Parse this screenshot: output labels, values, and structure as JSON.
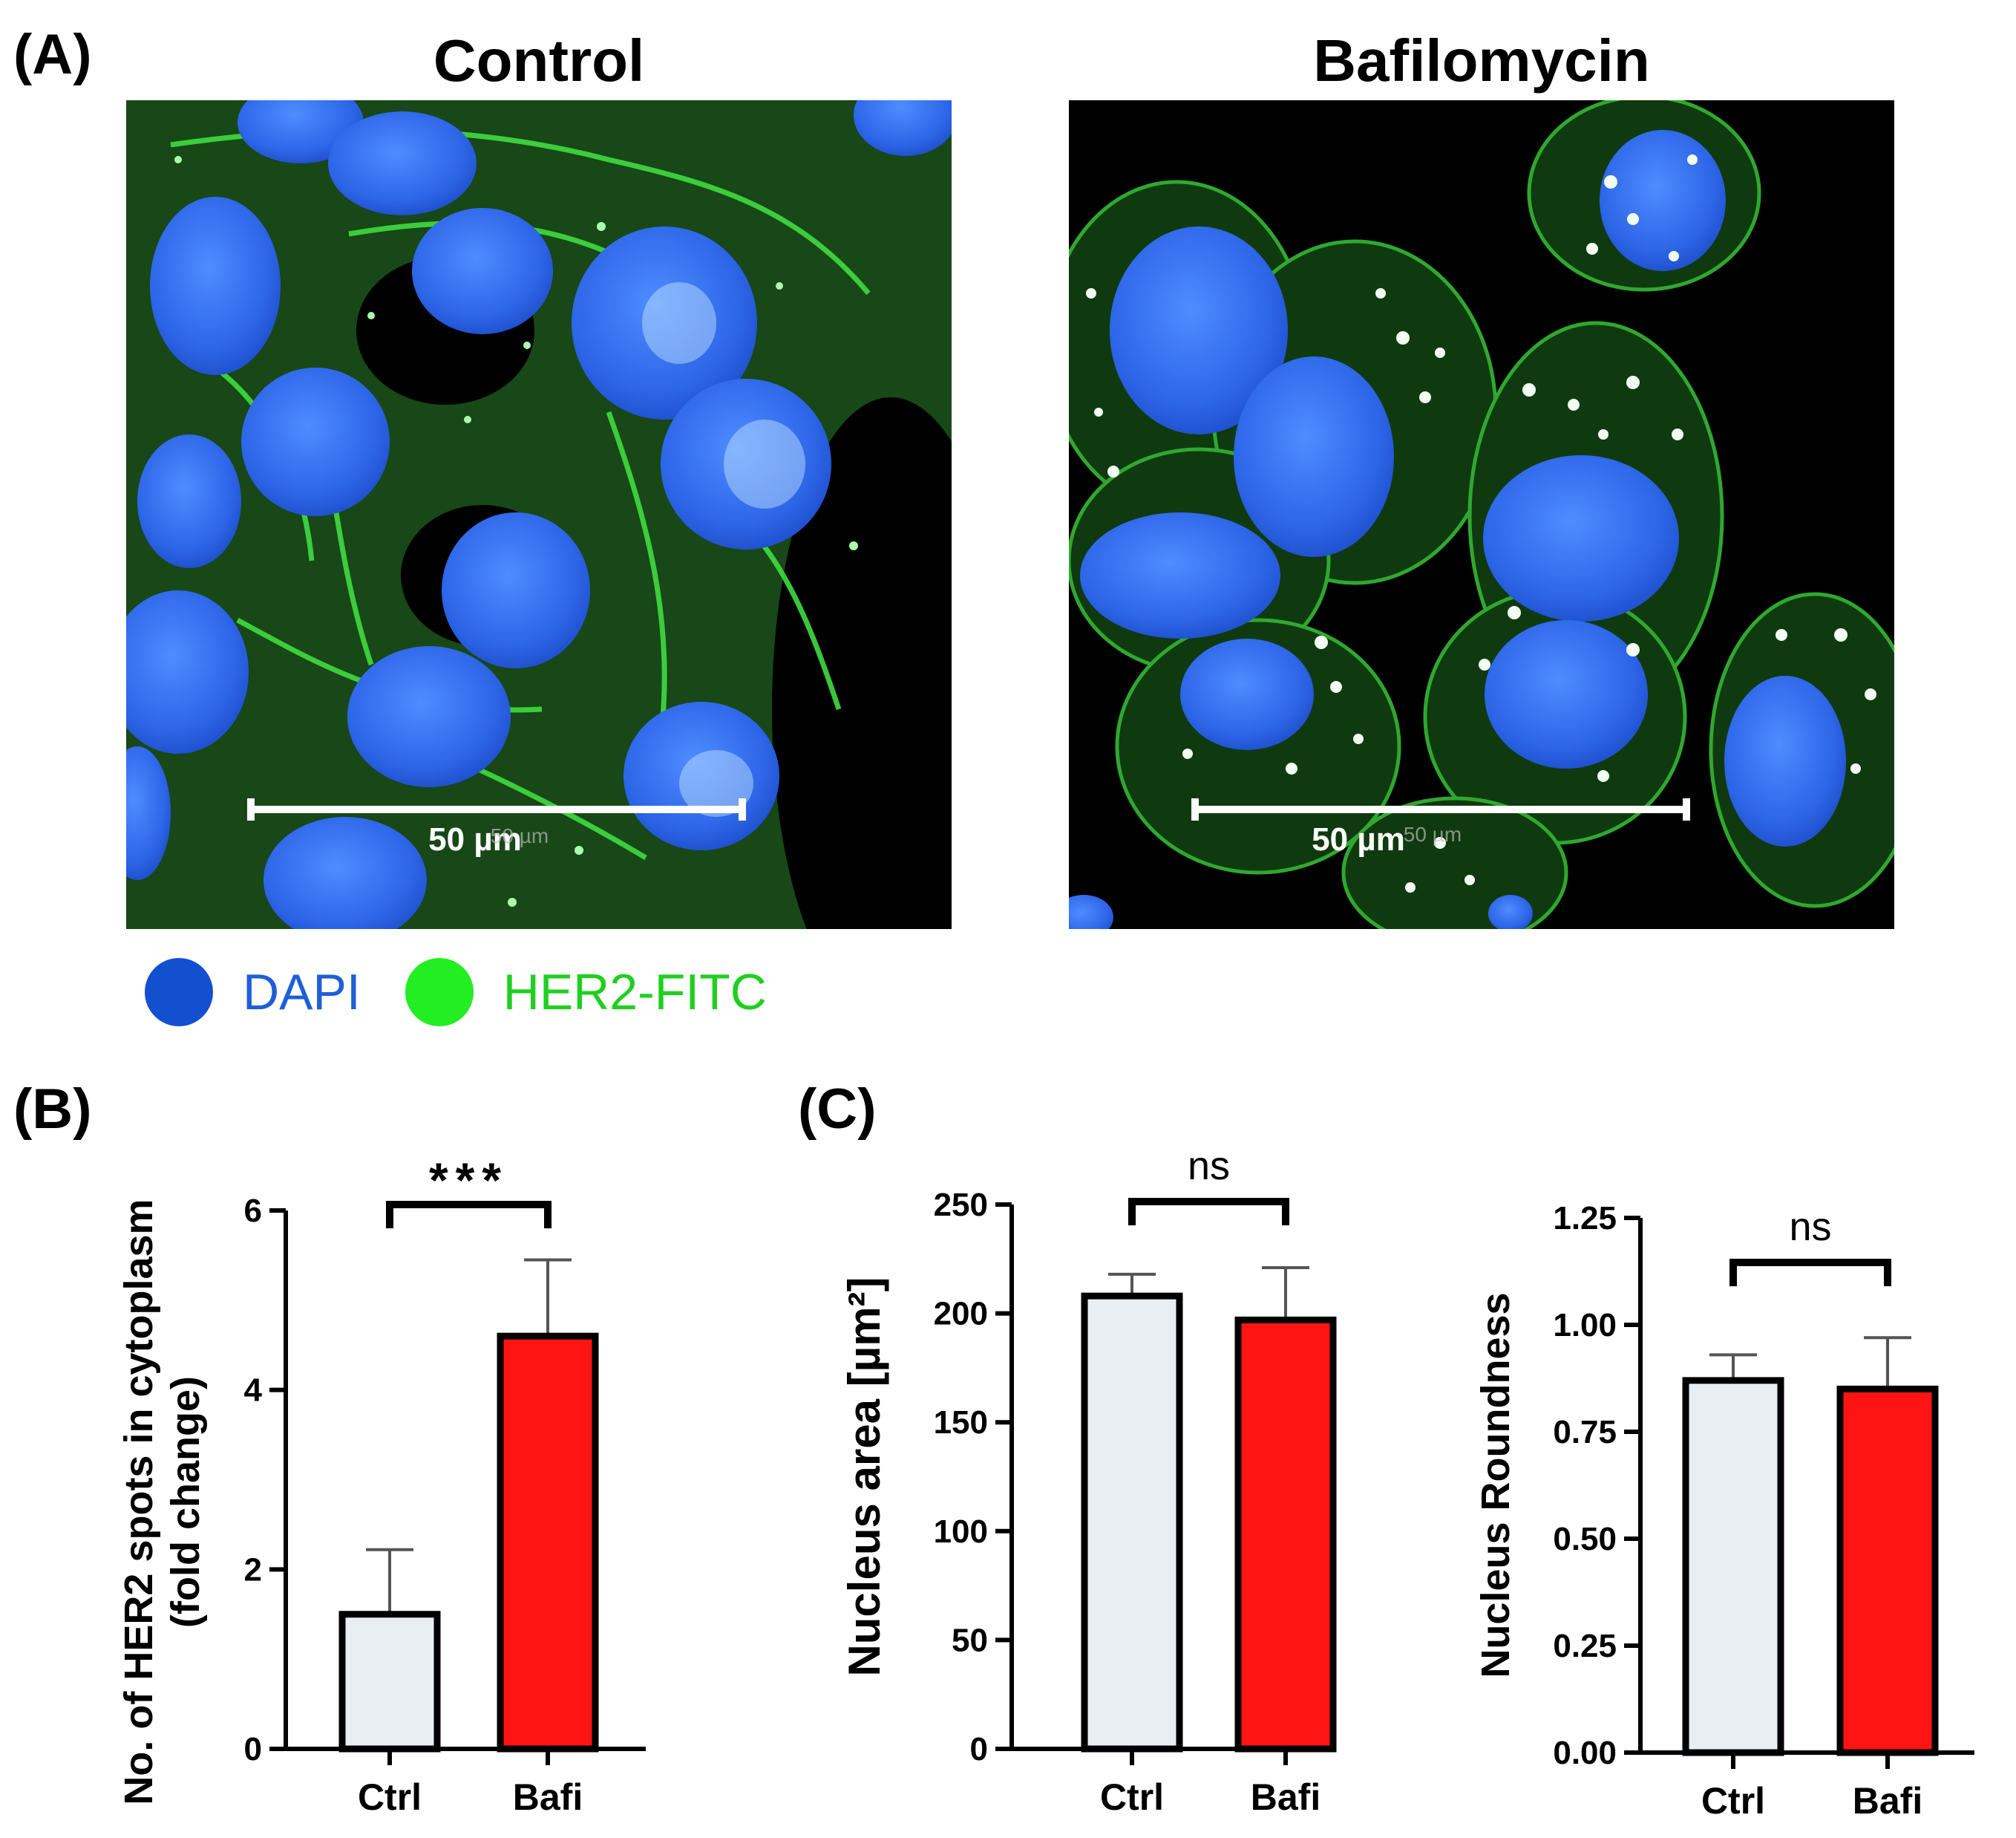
{
  "panelA": {
    "label": "(A)",
    "images": [
      {
        "title": "Control",
        "scalebar_label": "50 µm",
        "scalebar_faint": "50 µm"
      },
      {
        "title": "Bafilomycin",
        "scalebar_label": "50 µm",
        "scalebar_faint": "50 µm"
      }
    ],
    "legend": [
      {
        "label": "DAPI",
        "color": "#1f5fd6"
      },
      {
        "label": "HER2-FITC",
        "color": "#22dd22"
      }
    ]
  },
  "panelB_label": "(B)",
  "panelC_label": "(C)",
  "colors": {
    "ctrl": "#e9eef2",
    "bafi": "#ff1414",
    "edge": "#000000",
    "err": "#555555"
  },
  "chart_data": [
    {
      "type": "bar",
      "categories": [
        "Ctrl",
        "Bafi"
      ],
      "values": [
        1.5,
        4.6
      ],
      "errors": [
        0.72,
        0.85
      ],
      "ylabel": "No. of HER2 spots in cytoplasm",
      "ylabel2": "(fold change)",
      "ylim": [
        0,
        6
      ],
      "yticks": [
        "0",
        "2",
        "4",
        "6"
      ],
      "significance": "***"
    },
    {
      "type": "bar",
      "categories": [
        "Ctrl",
        "Bafi"
      ],
      "values": [
        208,
        197
      ],
      "errors": [
        10,
        24
      ],
      "ylabel": "Nucleus area [µm²]",
      "ylim": [
        0,
        250
      ],
      "yticks": [
        "0",
        "50",
        "100",
        "150",
        "200",
        "250"
      ],
      "significance": "ns"
    },
    {
      "type": "bar",
      "categories": [
        "Ctrl",
        "Bafi"
      ],
      "values": [
        0.87,
        0.85
      ],
      "errors": [
        0.06,
        0.12
      ],
      "ylabel": "Nucleus Roundness",
      "ylim": [
        0,
        1.25
      ],
      "yticks": [
        "0.00",
        "0.25",
        "0.50",
        "0.75",
        "1.00",
        "1.25"
      ],
      "significance": "ns"
    }
  ]
}
